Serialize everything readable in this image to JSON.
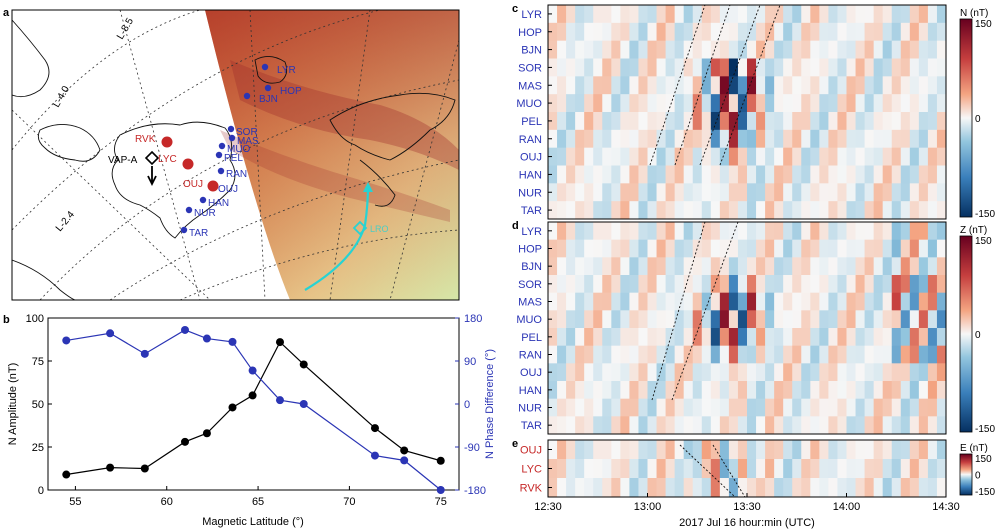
{
  "panels": {
    "a": {
      "letter": "a",
      "l_labels": [
        "L-8.5",
        "L-4.0",
        "L-2.4"
      ],
      "stations": [
        {
          "code": "LYR",
          "color": "#2b35b5"
        },
        {
          "code": "HOP",
          "color": "#2b35b5"
        },
        {
          "code": "BJN",
          "color": "#2b35b5"
        },
        {
          "code": "SOR",
          "color": "#2b35b5"
        },
        {
          "code": "MAS",
          "color": "#2b35b5"
        },
        {
          "code": "MUO",
          "color": "#2b35b5"
        },
        {
          "code": "PEL",
          "color": "#2b35b5"
        },
        {
          "code": "RAN",
          "color": "#2b35b5"
        },
        {
          "code": "OUJ",
          "color": "#2b35b5"
        },
        {
          "code": "HAN",
          "color": "#2b35b5"
        },
        {
          "code": "NUR",
          "color": "#2b35b5"
        },
        {
          "code": "TAR",
          "color": "#2b35b5"
        },
        {
          "code": "RVK",
          "color": "#c62828"
        },
        {
          "code": "LYC",
          "color": "#c62828"
        },
        {
          "code": "OUJ",
          "color": "#c62828"
        }
      ],
      "vap_label": "VAP-A",
      "track_label": "LRO"
    },
    "b": {
      "letter": "b"
    },
    "c": {
      "letter": "c"
    },
    "d": {
      "letter": "d"
    },
    "e": {
      "letter": "e"
    }
  },
  "chart_data": [
    {
      "panel": "b",
      "type": "line",
      "xlabel": "Magnetic Latitude (°)",
      "ylabel": "N Amplitude (nT)",
      "y2label": "N Phase Difference (°)",
      "xlim": [
        53.5,
        76
      ],
      "ylim": [
        0,
        100
      ],
      "y2lim": [
        -180,
        180
      ],
      "xticks": [
        55,
        60,
        65,
        70,
        75
      ],
      "yticks": [
        0,
        25,
        50,
        75,
        100
      ],
      "y2ticks": [
        -180,
        -90,
        0,
        90,
        180
      ],
      "series": [
        {
          "axis": "left",
          "color": "#000000",
          "x": [
            54.5,
            56.9,
            58.8,
            61,
            62.2,
            63.6,
            64.7,
            66.2,
            67.5,
            71.4,
            73,
            75
          ],
          "y": [
            9,
            13,
            12.5,
            28,
            33,
            48,
            55,
            86,
            73,
            36,
            23,
            17
          ]
        },
        {
          "axis": "right",
          "color": "#2b35b5",
          "x": [
            54.5,
            56.9,
            58.8,
            61,
            62.2,
            63.6,
            64.7,
            66.2,
            67.5,
            71.4,
            73,
            75
          ],
          "y": [
            133,
            148,
            105,
            155,
            137,
            130,
            70,
            8,
            0,
            -108,
            -118,
            -180
          ]
        }
      ]
    },
    {
      "panel": "c",
      "type": "heatmap",
      "rows": [
        "LYR",
        "HOP",
        "BJN",
        "SOR",
        "MAS",
        "MUO",
        "PEL",
        "RAN",
        "OUJ",
        "HAN",
        "NUR",
        "TAR"
      ],
      "colorbar_label": "N (nT)",
      "colorbar_ticks": [
        150,
        0,
        -150
      ]
    },
    {
      "panel": "d",
      "type": "heatmap",
      "rows": [
        "LYR",
        "HOP",
        "BJN",
        "SOR",
        "MAS",
        "MUO",
        "PEL",
        "RAN",
        "OUJ",
        "HAN",
        "NUR",
        "TAR"
      ],
      "colorbar_label": "Z (nT)",
      "colorbar_ticks": [
        150,
        0,
        -150
      ]
    },
    {
      "panel": "e",
      "type": "heatmap",
      "rows": [
        "OUJ",
        "LYC",
        "RVK"
      ],
      "colorbar_label": "E (nT)",
      "colorbar_ticks": [
        150,
        0,
        -150
      ],
      "xticks": [
        "12:30",
        "13:00",
        "13:30",
        "14:00",
        "14:30"
      ],
      "xlabel": "2017 Jul 16 hour:min (UTC)"
    }
  ],
  "colors": {
    "row_label_blue": "#2b35b5",
    "row_label_red": "#c62828",
    "cyan": "#27d3d3"
  }
}
